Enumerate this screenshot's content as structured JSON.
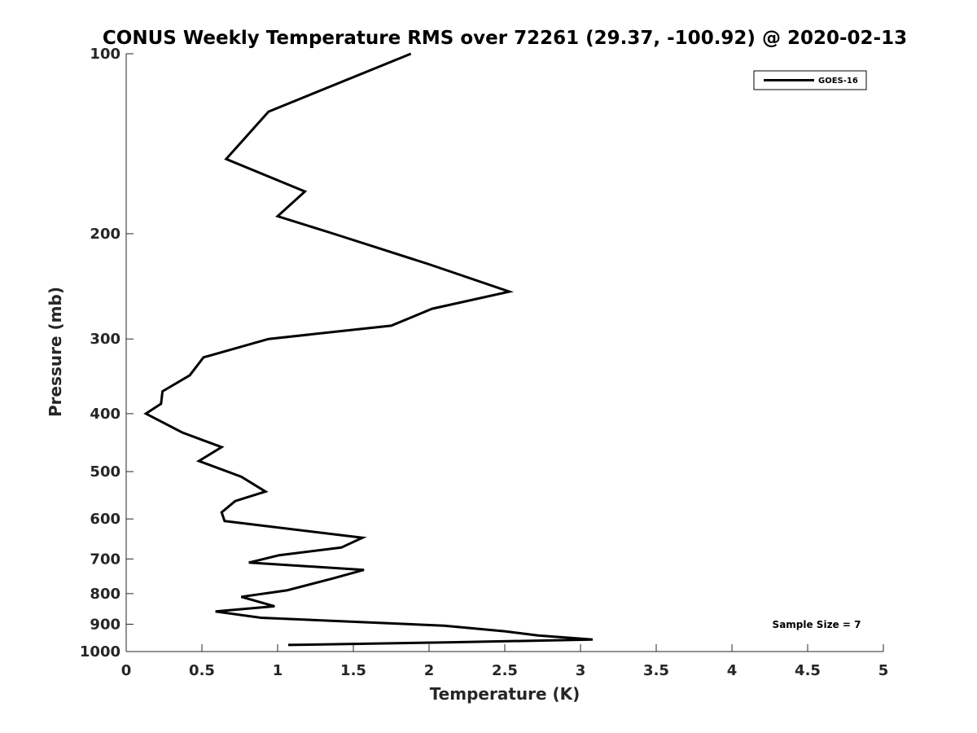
{
  "chart_data": {
    "type": "line",
    "title": "CONUS Weekly Temperature RMS over 72261 (29.37, -100.92) @ 2020-02-13",
    "xlabel": "Temperature (K)",
    "ylabel": "Pressure (mb)",
    "xlim": [
      0,
      5
    ],
    "ylim": [
      100,
      1000
    ],
    "y_scale": "log",
    "y_reversed": true,
    "x_ticks": [
      "0",
      "0.5",
      "1",
      "1.5",
      "2",
      "2.5",
      "3",
      "3.5",
      "4",
      "4.5",
      "5"
    ],
    "y_ticks": [
      "100",
      "200",
      "300",
      "400",
      "500",
      "600",
      "700",
      "800",
      "900",
      "1000"
    ],
    "grid": false,
    "legend_position": "top-right",
    "annotation": "Sample Size = 7",
    "series": [
      {
        "name": "GOES-16",
        "color": "#000000",
        "x": [
          1.88,
          0.94,
          0.66,
          1.18,
          1.0,
          1.37,
          2.0,
          2.53,
          2.02,
          1.75,
          0.94,
          0.51,
          0.42,
          0.24,
          0.23,
          0.13,
          0.37,
          0.63,
          0.48,
          0.76,
          0.92,
          0.72,
          0.63,
          0.65,
          1.56,
          1.42,
          1.01,
          0.81,
          1.57,
          1.36,
          1.06,
          0.76,
          0.98,
          0.59,
          0.89,
          2.1,
          2.5,
          2.72,
          3.08,
          2.15,
          1.07
        ],
        "y": [
          100,
          125,
          150,
          170,
          187,
          200,
          225,
          250,
          267,
          285,
          300,
          322,
          345,
          367,
          385,
          400,
          430,
          455,
          480,
          510,
          540,
          560,
          585,
          605,
          645,
          670,
          690,
          710,
          730,
          755,
          790,
          810,
          840,
          857,
          878,
          905,
          925,
          940,
          955,
          965,
          975
        ]
      }
    ]
  }
}
